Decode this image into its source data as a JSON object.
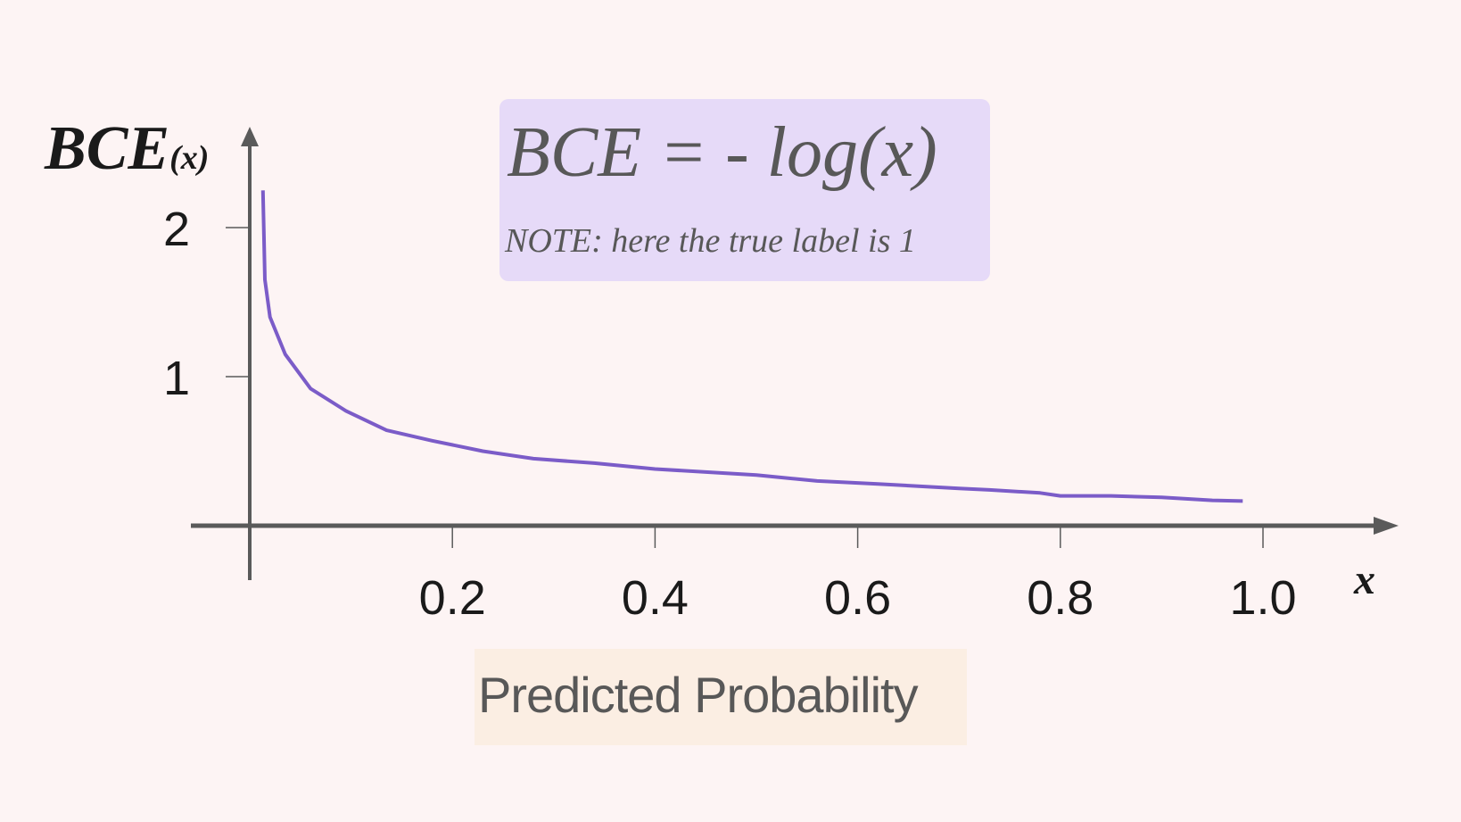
{
  "chart_data": {
    "type": "line",
    "formula": "BCE = - log(x)",
    "note": "NOTE: here the true label is 1",
    "ylabel_main": "BCE",
    "ylabel_sub": "(x)",
    "xaxis_symbol": "x",
    "xlabel": "Predicted Probability",
    "xlim": [
      -0.0,
      1.1
    ],
    "ylim": [
      0,
      2.5
    ],
    "xticks": [
      0.2,
      0.4,
      0.6,
      0.8,
      1.0
    ],
    "xtick_labels": [
      "0.2",
      "0.4",
      "0.6",
      "0.8",
      "1.0"
    ],
    "yticks": [
      1,
      2
    ],
    "ytick_labels": [
      "1",
      "2"
    ],
    "grid": false,
    "colors": {
      "line": "#7b5cc8",
      "axis": "#5a5a5a",
      "formula_bg": "#e6daf8",
      "xlabel_bg": "#fbeee3"
    },
    "series": [
      {
        "x": [
          0.013,
          0.014,
          0.015,
          0.02,
          0.035,
          0.06,
          0.095,
          0.135,
          0.18,
          0.23,
          0.28,
          0.34,
          0.4,
          0.5,
          0.56,
          0.62,
          0.7,
          0.73,
          0.78,
          0.8,
          0.85,
          0.9,
          0.95,
          0.98
        ],
        "y": [
          2.25,
          1.95,
          1.65,
          1.4,
          1.15,
          0.92,
          0.77,
          0.64,
          0.57,
          0.5,
          0.45,
          0.42,
          0.38,
          0.34,
          0.3,
          0.28,
          0.25,
          0.24,
          0.22,
          0.2,
          0.2,
          0.19,
          0.17,
          0.165
        ]
      }
    ]
  }
}
